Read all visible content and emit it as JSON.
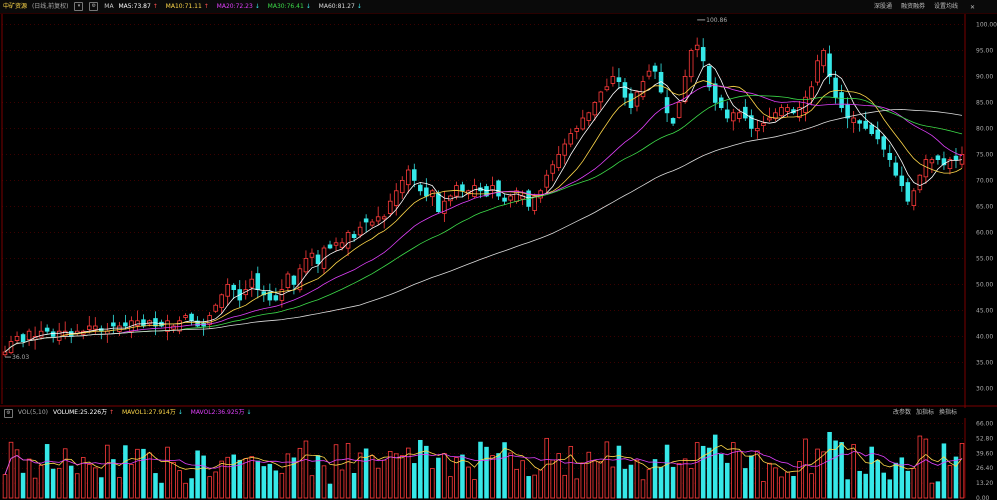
{
  "header": {
    "stock_name": "中矿资源",
    "period_label": "(日线,前复权)",
    "ma_label": "MA",
    "ma5": "MA5:73.87",
    "ma10": "MA10:71.11",
    "ma20": "MA20:72.23",
    "ma30": "MA30:76.41",
    "ma60": "MA60:81.27",
    "btn_shengutong": "深股通",
    "btn_margin": "融资融券",
    "btn_settings": "设置均线"
  },
  "volume_header": {
    "label": "VOL(5,10)",
    "volume": "VOLUME:25.226万",
    "mavol1": "MAVOL1:27.914万",
    "mavol2": "MAVOL2:36.925万",
    "btn_params": "改参数",
    "btn_add": "加指标",
    "btn_switch": "换指标"
  },
  "colors": {
    "up": "#ff3b3b",
    "down": "#36e8e8",
    "ma5": "#ffffff",
    "ma10": "#ffd84a",
    "ma20": "#e040fb",
    "ma30": "#3ddc4a",
    "ma60": "#dcdcdc",
    "grid": "#7a0000"
  },
  "chart_data": {
    "type": "candlestick",
    "price_axis": {
      "ticks": [
        "100.00",
        "95.00",
        "90.00",
        "85.00",
        "80.00",
        "75.00",
        "70.00",
        "65.00",
        "60.00",
        "55.00",
        "50.00",
        "45.00",
        "40.00",
        "35.00",
        "30.00"
      ],
      "ylim": [
        27,
        102
      ]
    },
    "volume_axis": {
      "ticks": [
        "66.00",
        "52.80",
        "39.60",
        "26.40",
        "13.20",
        "0.00"
      ],
      "ylim": [
        0,
        70
      ]
    },
    "annotations": {
      "high": "100.86",
      "low": "36.03"
    },
    "close": [
      37,
      39,
      40,
      39,
      41,
      40,
      41,
      41,
      40,
      41,
      41,
      40,
      41,
      41,
      42,
      42,
      41,
      41,
      42,
      42,
      42,
      43,
      43,
      42,
      43,
      42,
      42,
      43,
      42,
      43,
      44,
      43,
      42,
      42,
      44,
      46,
      48,
      50,
      49,
      47,
      49,
      51,
      49,
      48,
      47,
      47,
      49,
      52,
      50,
      53,
      55,
      56,
      54,
      57,
      57,
      58,
      58,
      60,
      59,
      61,
      62,
      62,
      63,
      63,
      66,
      68,
      70,
      72,
      70,
      68,
      67,
      68,
      64,
      66,
      67,
      69,
      68,
      68,
      69,
      68,
      67,
      69,
      67,
      66,
      67,
      68,
      67,
      65,
      67,
      68,
      71,
      73,
      75,
      77,
      79,
      80,
      82,
      83,
      85,
      87,
      88,
      90,
      89,
      86,
      84,
      87,
      89,
      91,
      91,
      87,
      83,
      81,
      85,
      90,
      95,
      96,
      93,
      88,
      85,
      84,
      82,
      83,
      83,
      82,
      80,
      80,
      81,
      82,
      83,
      84,
      84,
      83,
      84,
      86,
      88,
      93,
      95,
      90,
      86,
      84,
      82,
      82,
      81,
      80,
      79,
      78,
      76,
      74,
      71,
      69,
      66,
      68,
      71,
      74,
      74,
      74,
      73,
      74,
      74,
      75
    ]
  }
}
